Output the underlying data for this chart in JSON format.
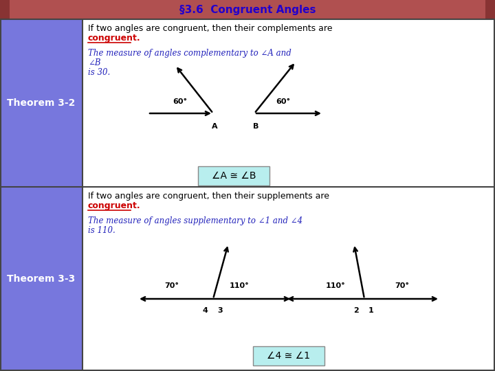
{
  "title": "§3.6  Congruent Angles",
  "title_bg": "#B05050",
  "title_fg": "#2200CC",
  "left_panel_bg": "#7777DD",
  "left_panel_fg": "white",
  "main_bg": "white",
  "border_color": "#444444",
  "theorem32_label": "Theorem 3-2",
  "theorem33_label": "Theorem 3-3",
  "thm32_line1": "If two angles are congruent, then their complements are",
  "thm32_red": "congruent",
  "thm32_italic1": "The measure of angles complementary to ∠A and",
  "thm32_italic2": "∠B",
  "thm32_italic3": "is 30.",
  "thm32_congruent": "∠A ≅ ∠B",
  "thm33_line1": "If two angles are congruent, then their supplements are",
  "thm33_red": "congruent",
  "thm33_italic1": "The measure of angles supplementary to ∠1 and ∠4",
  "thm33_italic2": "is 110.",
  "thm33_congruent": "∠4 ≅ ∠1",
  "box_bg": "#B8EEEE",
  "red_color": "#CC0000",
  "blue_italic_color": "#2222BB",
  "angle_color": "black",
  "title_fontsize": 11,
  "body_fontsize": 9,
  "italic_fontsize": 8.5,
  "label_fontsize": 10
}
